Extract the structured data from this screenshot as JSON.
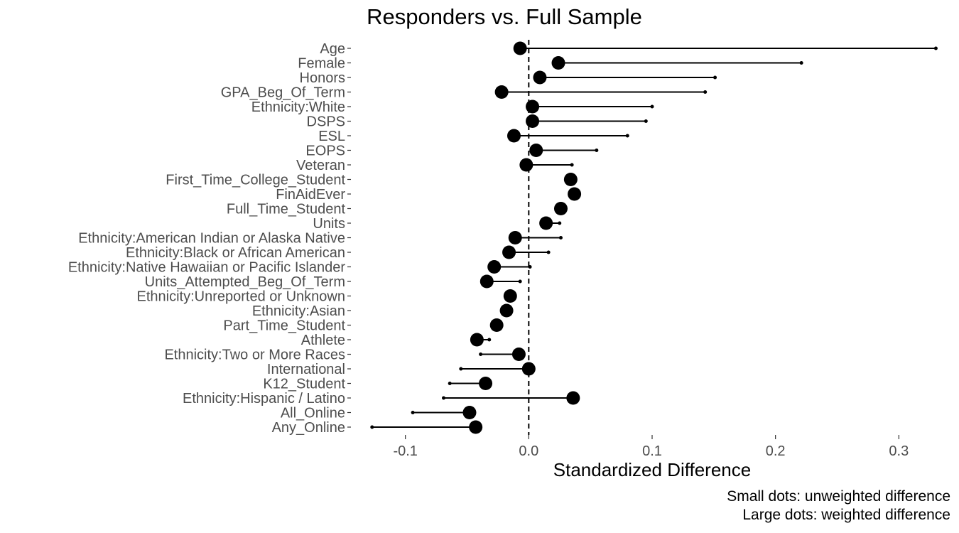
{
  "chart_data": {
    "type": "scatter",
    "title": "Responders vs. Full Sample",
    "xlabel": "Standardized Difference",
    "ylabel": "",
    "xlim": [
      -0.143,
      0.343
    ],
    "xticks": [
      -0.1,
      0.0,
      0.1,
      0.2,
      0.3
    ],
    "xtick_labels": [
      "-0.1",
      "0.0",
      "0.1",
      "0.2",
      "0.3"
    ],
    "reference_line": {
      "x": 0,
      "style": "dashed"
    },
    "grid": false,
    "legend": "none",
    "caption_lines": [
      "Small dots: unweighted difference",
      "Large dots: weighted difference"
    ],
    "categories": [
      "Age",
      "Female",
      "Honors",
      "GPA_Beg_Of_Term",
      "Ethnicity:White",
      "DSPS",
      "ESL",
      "EOPS",
      "Veteran",
      "First_Time_College_Student",
      "FinAidEver",
      "Full_Time_Student",
      "Units",
      "Ethnicity:American Indian or Alaska Native",
      "Ethnicity:Black or African American",
      "Ethnicity:Native Hawaiian or Pacific Islander",
      "Units_Attempted_Beg_Of_Term",
      "Ethnicity:Unreported or Unknown",
      "Ethnicity:Asian",
      "Part_Time_Student",
      "Athlete",
      "Ethnicity:Two or More Races",
      "International",
      "K12_Student",
      "Ethnicity:Hispanic / Latino",
      "All_Online",
      "Any_Online"
    ],
    "series": [
      {
        "name": "unweighted",
        "values": [
          0.33,
          0.221,
          0.151,
          0.143,
          0.1,
          0.095,
          0.08,
          0.055,
          0.035,
          0.035,
          0.038,
          0.026,
          0.025,
          0.026,
          0.016,
          0.001,
          -0.007,
          -0.015,
          -0.018,
          -0.026,
          -0.032,
          -0.039,
          -0.055,
          -0.064,
          -0.069,
          -0.094,
          -0.127
        ]
      },
      {
        "name": "weighted",
        "values": [
          -0.007,
          0.024,
          0.009,
          -0.022,
          0.003,
          0.003,
          -0.012,
          0.006,
          -0.002,
          0.034,
          0.037,
          0.026,
          0.014,
          -0.011,
          -0.016,
          -0.028,
          -0.034,
          -0.015,
          -0.018,
          -0.026,
          -0.042,
          -0.008,
          0.0,
          -0.035,
          0.036,
          -0.048,
          -0.043
        ]
      }
    ],
    "colors": {
      "points": "#000000",
      "axis_text": "#4d4d4d",
      "title": "#000000"
    }
  }
}
